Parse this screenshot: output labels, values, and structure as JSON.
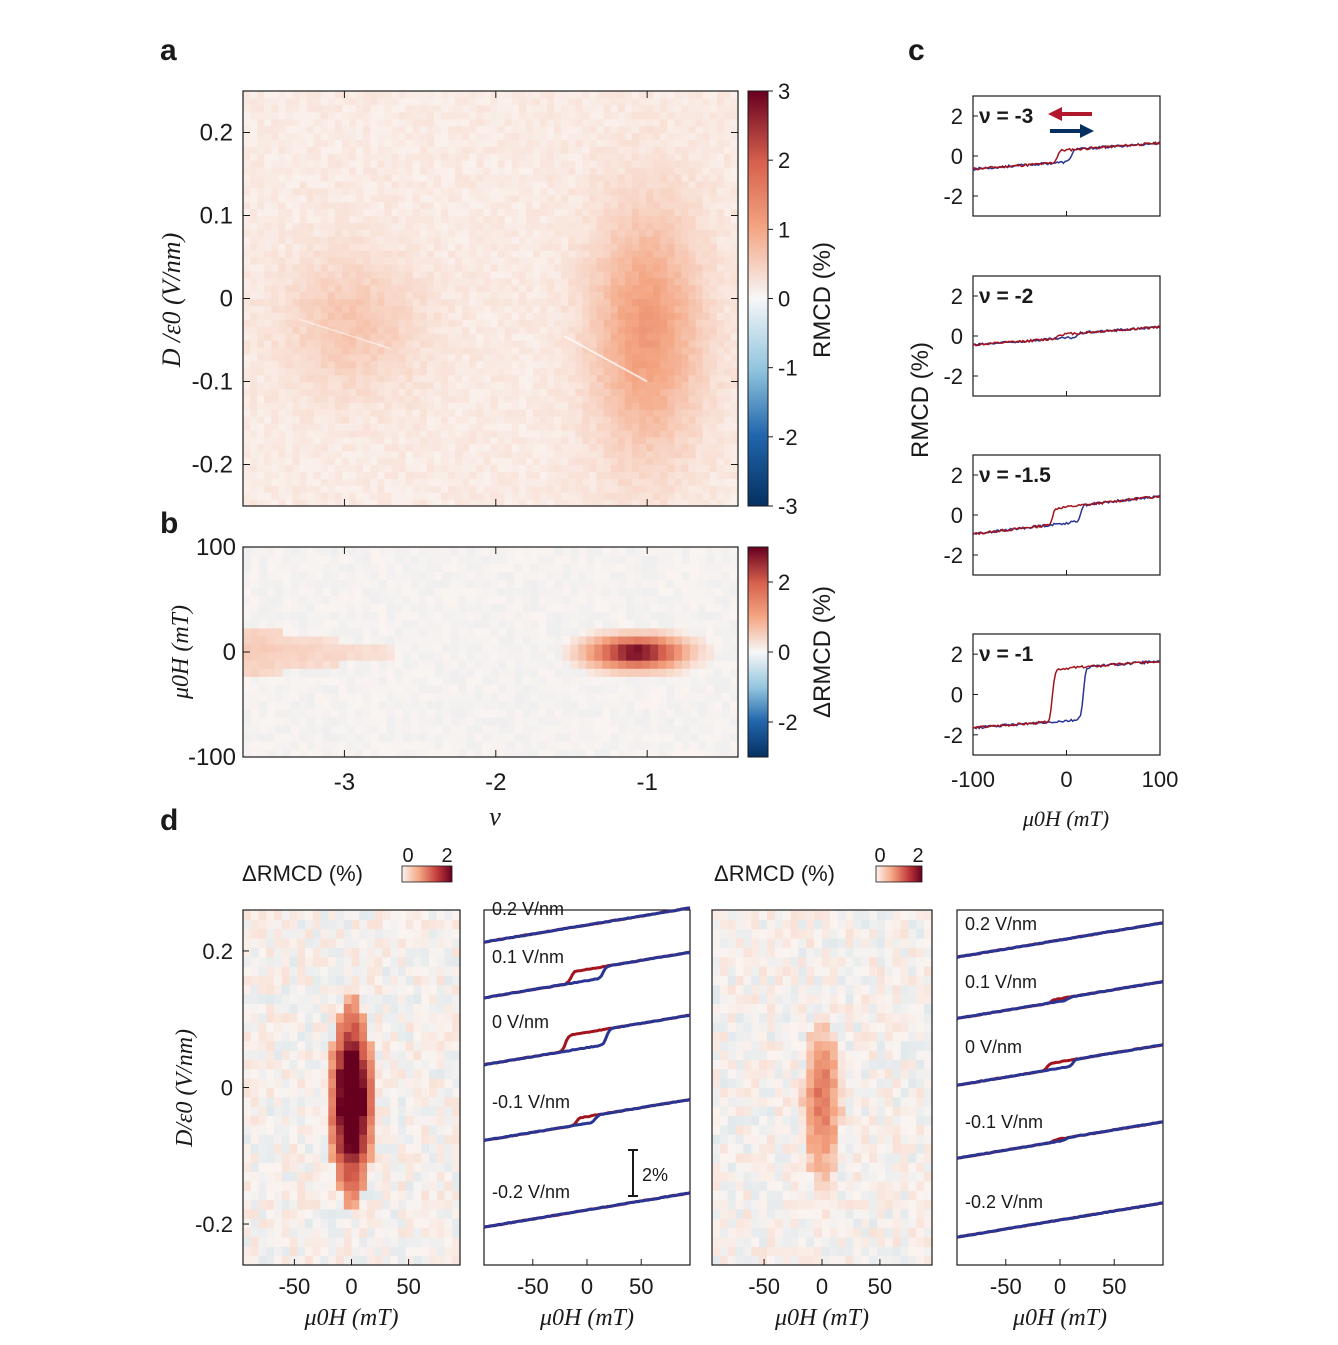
{
  "colors": {
    "red": "#b2182b",
    "darkred": "#67001f",
    "blue": "#2166ac",
    "navy": "#053061",
    "trace_red": "#a3141c",
    "trace_blue": "#2a3593",
    "axis": "#1a1a1a"
  },
  "panel_labels": {
    "a": "a",
    "b": "b",
    "c": "c",
    "d": "d"
  },
  "chart_data": [
    {
      "id": "a",
      "type": "heatmap",
      "title": "",
      "xlabel": "v",
      "ylabel": "D /ε0 (V/nm)",
      "xlim": [
        -3.67,
        -0.4
      ],
      "ylim": [
        -0.25,
        0.25
      ],
      "xticks": [
        -3,
        -2,
        -1
      ],
      "xtick_labels": [
        "-3",
        "-2",
        "-1"
      ],
      "yticks": [
        -0.2,
        -0.1,
        0,
        0.1,
        0.2
      ],
      "ytick_labels": [
        "-0.2",
        "-0.1",
        "0",
        "0.1",
        "0.2"
      ],
      "colorbar": {
        "label": "RMCD (%)",
        "range": [
          -3,
          3
        ],
        "ticks": [
          -3,
          -2,
          -1,
          0,
          1,
          2,
          3
        ],
        "tick_labels": [
          "-3",
          "-2",
          "-1",
          "0",
          "1",
          "2",
          "3"
        ]
      },
      "features": [
        {
          "name": "lobe near v=-3",
          "center_v": -2.95,
          "center_D": -0.03,
          "half_width_v": 0.5,
          "half_height_D": 0.09,
          "peak_percent": 0.45
        },
        {
          "name": "lobe near v=-1",
          "center_v": -1.0,
          "center_D": -0.04,
          "half_width_v": 0.4,
          "half_height_D": 0.16,
          "peak_percent": 1.0
        }
      ]
    },
    {
      "id": "b",
      "type": "heatmap",
      "xlabel": "v",
      "ylabel": "μ0H (mT)",
      "xlim": [
        -3.67,
        -0.4
      ],
      "ylim": [
        -100,
        100
      ],
      "xticks": [
        -3,
        -2,
        -1
      ],
      "xtick_labels": [
        "-3",
        "-2",
        "-1"
      ],
      "yticks": [
        -100,
        0,
        100
      ],
      "ytick_labels": [
        "-100",
        "0",
        "100"
      ],
      "colorbar": {
        "label": "ΔRMCD (%)",
        "range": [
          -3,
          3
        ],
        "ticks": [
          -2,
          0,
          2
        ],
        "tick_labels": [
          "-2",
          "0",
          "2"
        ]
      },
      "features": [
        {
          "name": "wedge near v=-3.5",
          "v_start": -3.67,
          "v_end": -2.55,
          "half_height_mT": 22,
          "peak_percent": 0.6
        },
        {
          "name": "hotspot near v=-1.1",
          "center_v": -1.07,
          "center_mT": 0,
          "half_width_v": 0.45,
          "half_height_mT": 22,
          "peak_percent": 3.0
        }
      ]
    },
    {
      "id": "c",
      "type": "line",
      "xlabel": "μ0H (mT)",
      "ylabel": "RMCD (%)",
      "xlim": [
        -100,
        100
      ],
      "ylim": [
        -3,
        3
      ],
      "xticks": [
        -100,
        0,
        100
      ],
      "xtick_labels": [
        "-100",
        "0",
        "100"
      ],
      "yticks": [
        -2,
        0,
        2
      ],
      "ytick_labels": [
        "-2",
        "0",
        "2"
      ],
      "subplots": [
        {
          "nu_label": "ν = -3",
          "slope": 0.0035,
          "offset": 0.0,
          "step": 0.6,
          "coercive_down": -10,
          "coercive_up": 5
        },
        {
          "nu_label": "ν = -2",
          "slope": 0.0035,
          "offset": 0.0,
          "step": 0.2,
          "coercive_down": -10,
          "coercive_up": 12
        },
        {
          "nu_label": "ν = -1.5",
          "slope": 0.0055,
          "offset": 0.0,
          "step": 0.8,
          "coercive_down": -15,
          "coercive_up": 15
        },
        {
          "nu_label": "ν = -1",
          "slope": 0.0035,
          "offset": 0.0,
          "step": 2.6,
          "coercive_down": -15,
          "coercive_up": 18
        }
      ],
      "legend_arrows": [
        "red: sweep down",
        "navy: sweep up"
      ]
    },
    {
      "id": "d1",
      "type": "heatmap",
      "xlabel": "μ0H (mT)",
      "ylabel": "D/ε0 (V/nm)",
      "xlim": [
        -95,
        95
      ],
      "ylim": [
        -0.26,
        0.26
      ],
      "xticks": [
        -50,
        0,
        50
      ],
      "xtick_labels": [
        "-50",
        "0",
        "50"
      ],
      "yticks": [
        -0.2,
        0,
        0.2
      ],
      "ytick_labels": [
        "-0.2",
        "0",
        "0.2"
      ],
      "colorbar": {
        "label": "ΔRMCD (%)",
        "ticks": [
          0,
          2
        ],
        "tick_labels": [
          "0",
          "2"
        ]
      },
      "features": [
        {
          "center_mT": 0,
          "center_D": -0.02,
          "half_width_mT": 18,
          "half_height_D": 0.13,
          "peak_percent": 2.5
        }
      ]
    },
    {
      "id": "d2",
      "type": "line",
      "xlabel": "μ0H (mT)",
      "xlim": [
        -95,
        95
      ],
      "xticks": [
        -50,
        0,
        50
      ],
      "xtick_labels": [
        "-50",
        "0",
        "50"
      ],
      "scale_bar": "2%",
      "traces": [
        {
          "label": "0.2 V/nm",
          "step": 0.0,
          "coercive_down": 0,
          "coercive_up": 0
        },
        {
          "label": "0.1 V/nm",
          "step": 2.5,
          "coercive_down": -15,
          "coercive_up": 15
        },
        {
          "label": "0 V/nm",
          "step": 3.4,
          "coercive_down": -20,
          "coercive_up": 18
        },
        {
          "label": "-0.1 V/nm",
          "step": 1.5,
          "coercive_down": -10,
          "coercive_up": 8
        },
        {
          "label": "-0.2 V/nm",
          "step": 0.0,
          "coercive_down": 0,
          "coercive_up": 0
        }
      ]
    },
    {
      "id": "d3",
      "type": "heatmap",
      "xlabel": "μ0H (mT)",
      "xlim": [
        -95,
        95
      ],
      "ylim": [
        -0.26,
        0.26
      ],
      "xticks": [
        -50,
        0,
        50
      ],
      "xtick_labels": [
        "-50",
        "0",
        "50"
      ],
      "colorbar": {
        "label": "ΔRMCD (%)",
        "ticks": [
          0,
          2
        ],
        "tick_labels": [
          "0",
          "2"
        ]
      },
      "features": [
        {
          "center_mT": 0,
          "center_D": -0.02,
          "half_width_mT": 15,
          "half_height_D": 0.11,
          "peak_percent": 1.0
        }
      ]
    },
    {
      "id": "d4",
      "type": "line",
      "xlabel": "μ0H (mT)",
      "xlim": [
        -95,
        95
      ],
      "xticks": [
        -50,
        0,
        50
      ],
      "xtick_labels": [
        "-50",
        "0",
        "50"
      ],
      "traces": [
        {
          "label": "0.2 V/nm",
          "step": 0.0,
          "coercive_down": 0,
          "coercive_up": 0
        },
        {
          "label": "0.1 V/nm",
          "step": 0.6,
          "coercive_down": -8,
          "coercive_up": 8
        },
        {
          "label": "0 V/nm",
          "step": 1.4,
          "coercive_down": -12,
          "coercive_up": 12
        },
        {
          "label": "-0.1 V/nm",
          "step": 0.5,
          "coercive_down": -6,
          "coercive_up": 6
        },
        {
          "label": "-0.2 V/nm",
          "step": 0.0,
          "coercive_down": 0,
          "coercive_up": 0
        }
      ]
    }
  ]
}
